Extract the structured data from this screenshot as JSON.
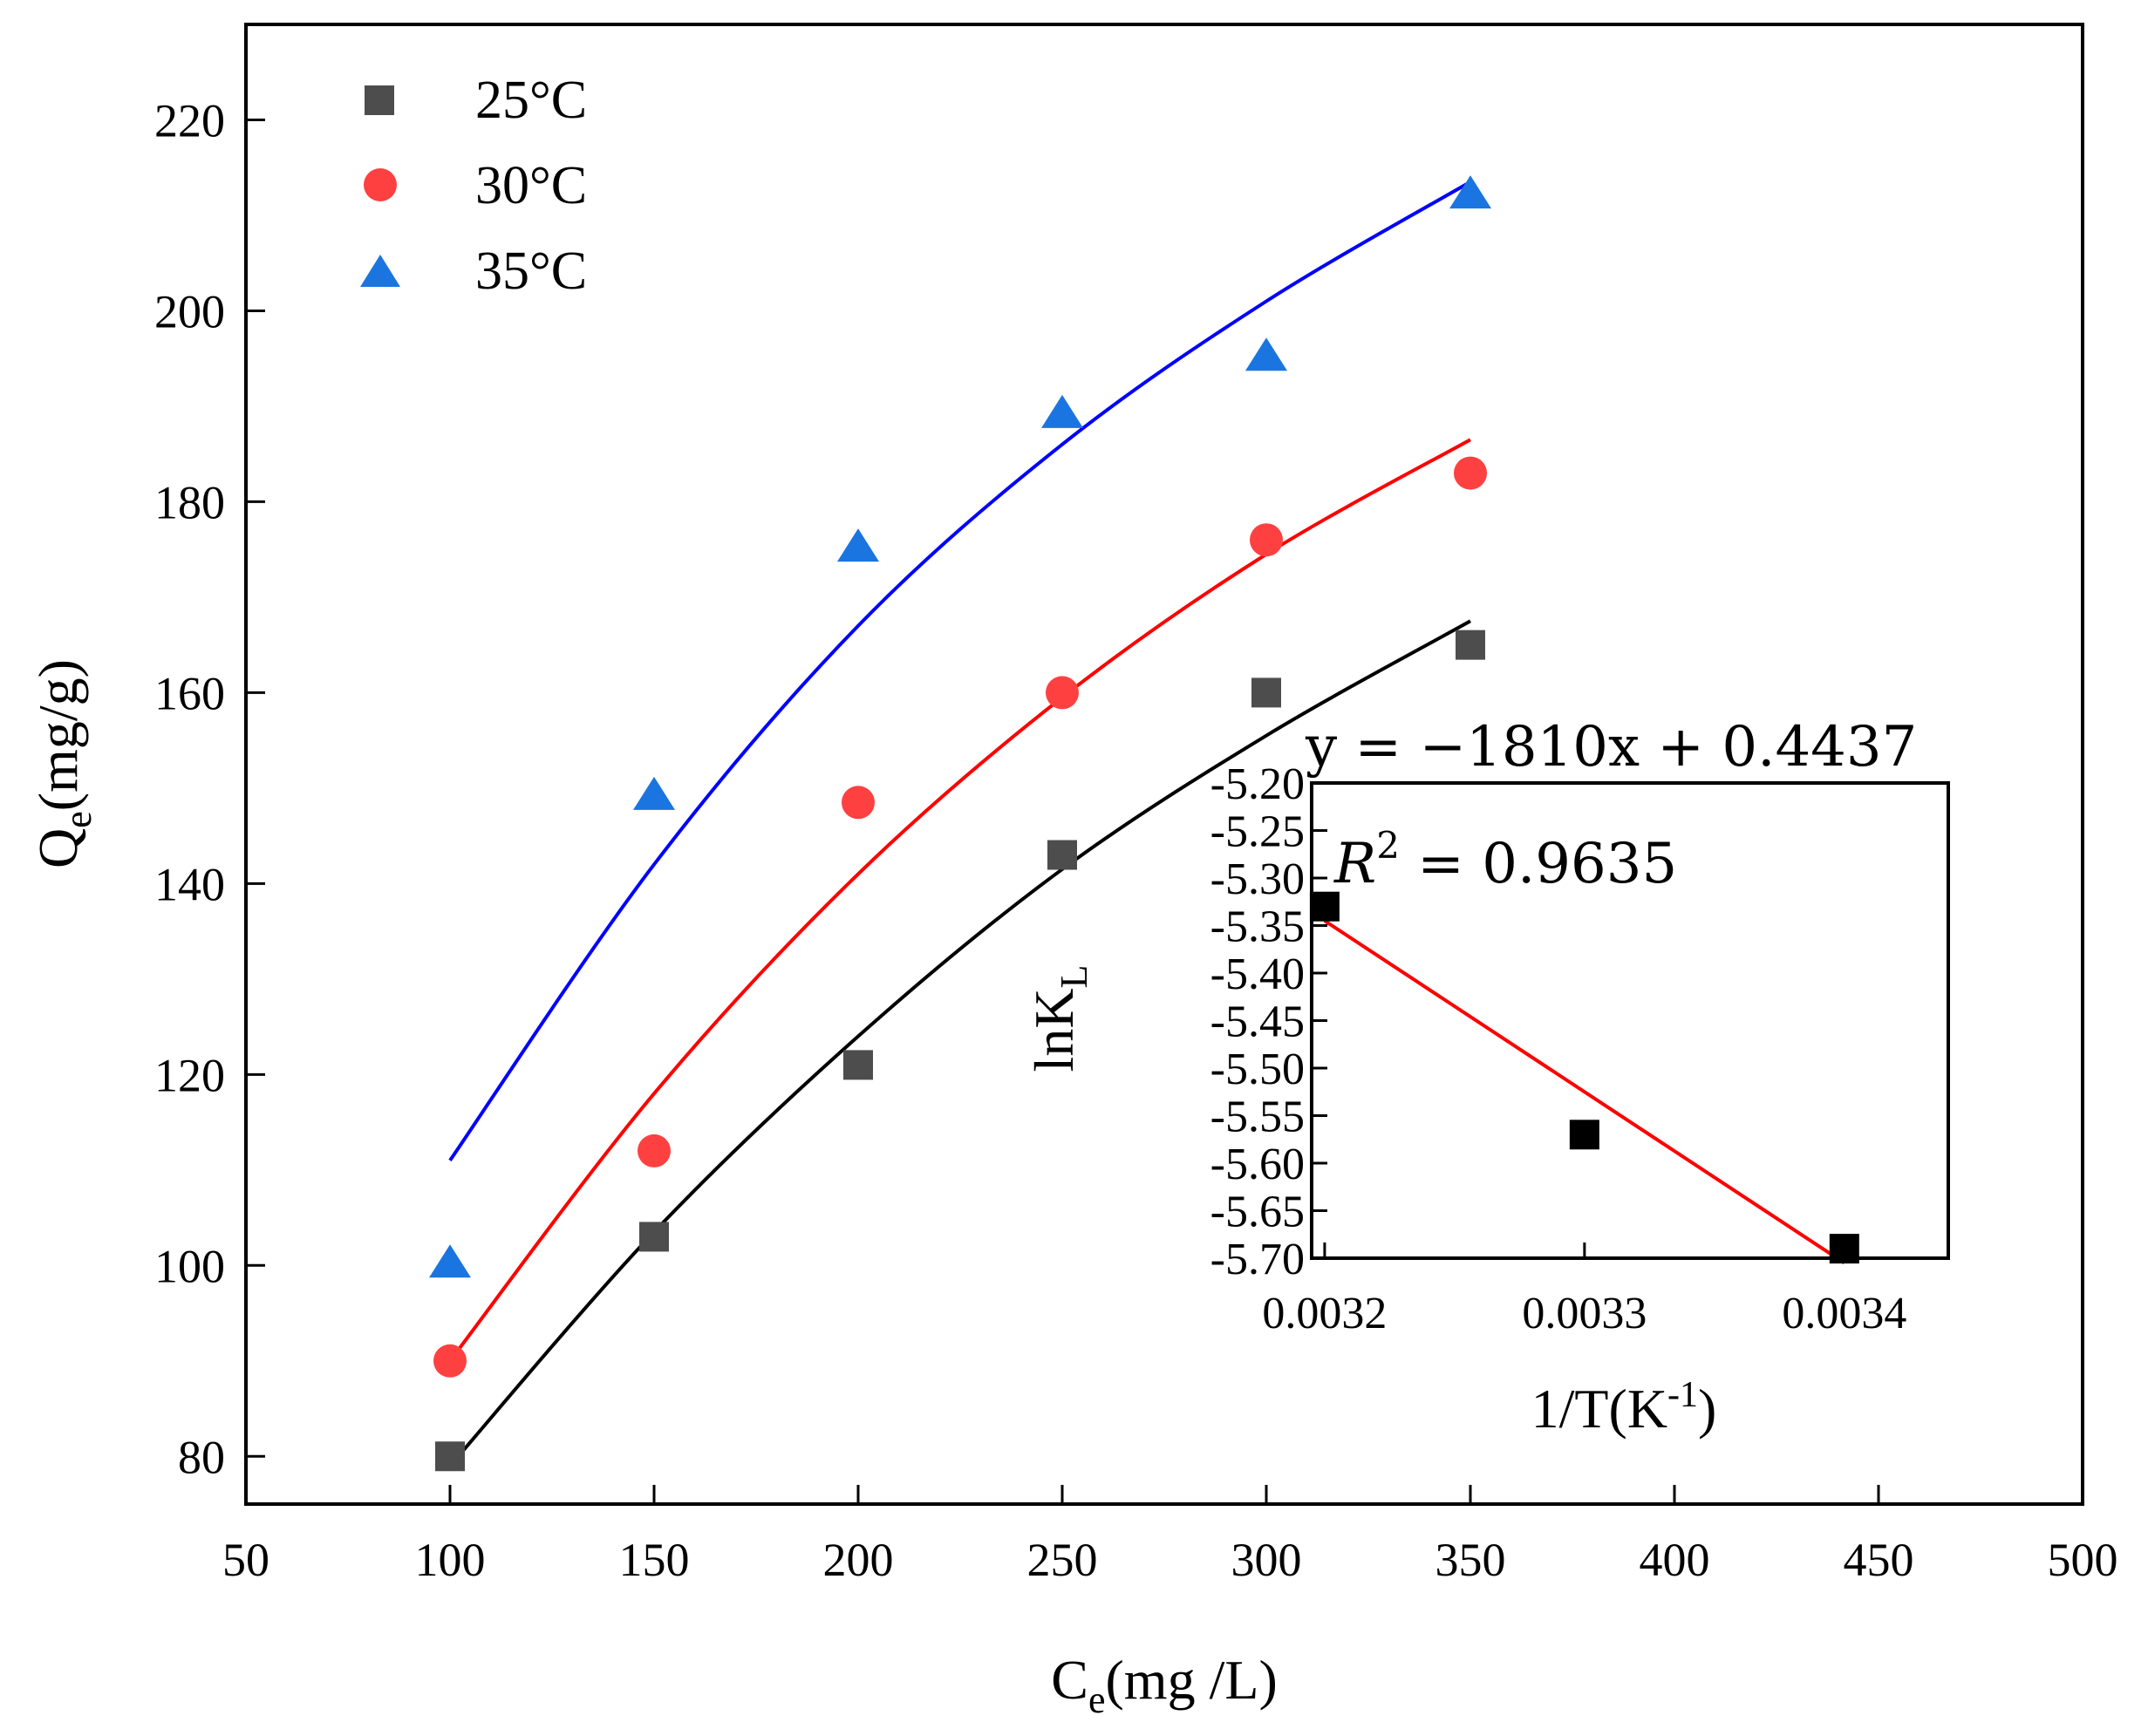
{
  "chart_data": [
    {
      "type": "scatter",
      "title": "",
      "xlabel": "Ce(mg /L)",
      "xlabel_main": "C",
      "xlabel_sub": "e",
      "xlabel_rest": "(mg /L)",
      "ylabel": "Qe(mg/g)",
      "ylabel_main": "Q",
      "ylabel_sub": "e",
      "ylabel_rest": "(mg/g)",
      "xlim": [
        50,
        500
      ],
      "ylim": [
        75,
        230
      ],
      "xticks": [
        50,
        100,
        150,
        200,
        250,
        300,
        350,
        400,
        450,
        500
      ],
      "yticks": [
        80,
        100,
        120,
        140,
        160,
        180,
        200,
        220
      ],
      "legend_position": "top-left",
      "series": [
        {
          "name": "25°C",
          "marker": "square",
          "color": "#4d4d4d",
          "fit_color": "#000000",
          "x": [
            100,
            150,
            200,
            250,
            300,
            350
          ],
          "y": [
            80,
            103,
            121,
            143,
            160,
            165
          ],
          "fit": {
            "x": [
              100,
              150,
              200,
              250,
              300,
              350
            ],
            "y": [
              79,
              103.5,
              124,
              141.5,
              155.5,
              167.5
            ]
          }
        },
        {
          "name": "30°C",
          "marker": "circle",
          "color": "#ff4040",
          "fit_color": "#ff0000",
          "x": [
            100,
            150,
            200,
            250,
            300,
            350
          ],
          "y": [
            90,
            112,
            148.5,
            160,
            176,
            183
          ],
          "fit": {
            "x": [
              100,
              150,
              200,
              250,
              300,
              350
            ],
            "y": [
              90,
              118,
              141,
              159.5,
              174.5,
              186.5
            ]
          }
        },
        {
          "name": "35°C",
          "marker": "triangle",
          "color": "#1a75e0",
          "fit_color": "#0000ff",
          "x": [
            100,
            150,
            200,
            250,
            300,
            350
          ],
          "y": [
            100,
            149,
            175,
            189,
            195,
            212
          ],
          "fit": {
            "x": [
              100,
              150,
              200,
              250,
              300,
              350
            ],
            "y": [
              111,
              142,
              167,
              186,
              201,
              213.5
            ]
          }
        }
      ]
    },
    {
      "type": "scatter",
      "title": "",
      "xlabel": "1/T(K-1)",
      "xlabel_main": "1/T(K",
      "xlabel_sup": "-1",
      "xlabel_rest": ")",
      "ylabel": "lnKL",
      "ylabel_main": "lnK",
      "ylabel_sub": "L",
      "xlim": [
        0.003195,
        0.00344
      ],
      "ylim": [
        -5.7,
        -5.2
      ],
      "xticks": [
        0.0032,
        0.0033,
        0.0034
      ],
      "xtick_labels": [
        "0.0032",
        "0.0033",
        "0.0034"
      ],
      "yticks": [
        -5.2,
        -5.25,
        -5.3,
        -5.35,
        -5.4,
        -5.45,
        -5.5,
        -5.55,
        -5.6,
        -5.65,
        -5.7
      ],
      "ytick_labels": [
        "-5.20",
        "-5.25",
        "-5.30",
        "-5.35",
        "-5.40",
        "-5.45",
        "-5.50",
        "-5.55",
        "-5.60",
        "-5.65",
        "-5.70"
      ],
      "annotations": {
        "equation": "y = −1810x + 0.4437",
        "r2_label": "R",
        "r2_sup": "2",
        "r2_value": " = 0.9635"
      },
      "series": [
        {
          "name": "lnKL",
          "marker": "square",
          "color": "#000000",
          "x": [
            0.0032,
            0.0033,
            0.0034
          ],
          "y": [
            -5.33,
            -5.57,
            -5.69
          ]
        }
      ],
      "fit_line": {
        "color": "#ff0000",
        "x": [
          0.0032,
          0.0034
        ],
        "y": [
          -5.345,
          -5.705
        ]
      }
    }
  ]
}
